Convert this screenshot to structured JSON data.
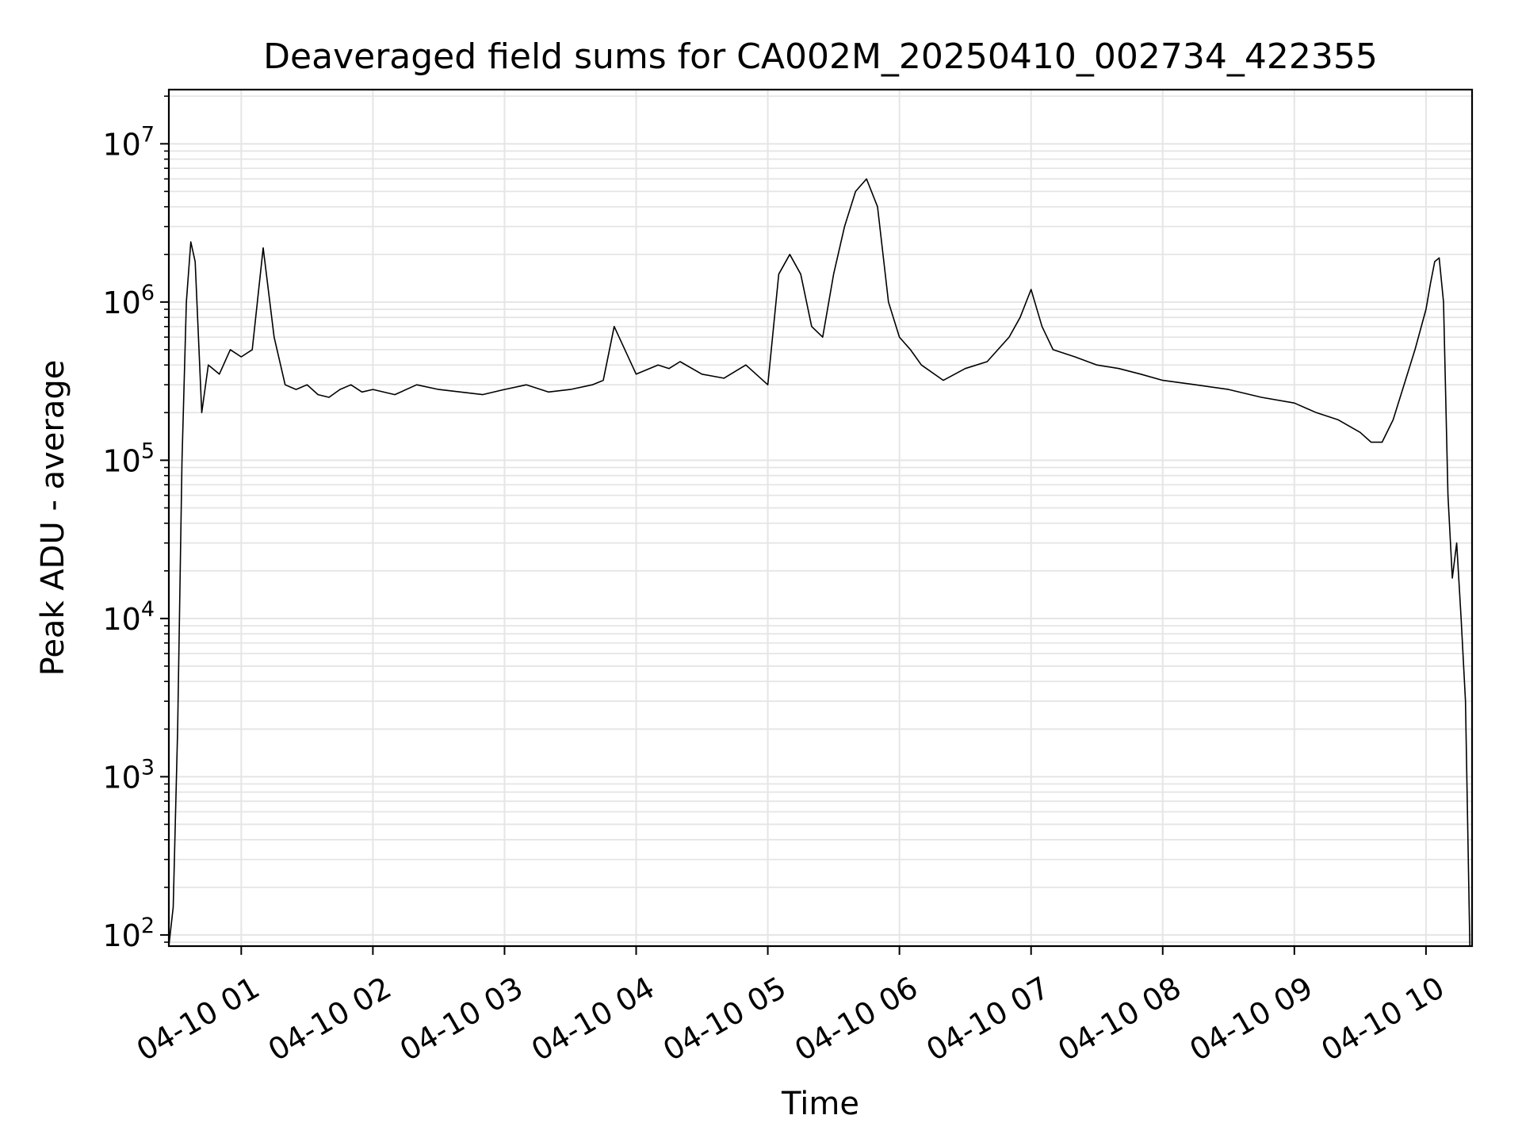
{
  "chart_data": {
    "type": "line",
    "title": "Deaveraged field sums for CA002M_20250410_002734_422355",
    "xlabel": "Time",
    "ylabel": "Peak ADU - average",
    "yscale": "log",
    "ylim": [
      85,
      22000000
    ],
    "xlim": [
      "2025-04-10 00:27",
      "2025-04-10 10:21"
    ],
    "grid": true,
    "line_color": "#000000",
    "grid_color": "#e5e5e5",
    "x_ticks": [
      {
        "value": "2025-04-10 01:00",
        "label": "04-10 01"
      },
      {
        "value": "2025-04-10 02:00",
        "label": "04-10 02"
      },
      {
        "value": "2025-04-10 03:00",
        "label": "04-10 03"
      },
      {
        "value": "2025-04-10 04:00",
        "label": "04-10 04"
      },
      {
        "value": "2025-04-10 05:00",
        "label": "04-10 05"
      },
      {
        "value": "2025-04-10 06:00",
        "label": "04-10 06"
      },
      {
        "value": "2025-04-10 07:00",
        "label": "04-10 07"
      },
      {
        "value": "2025-04-10 08:00",
        "label": "04-10 08"
      },
      {
        "value": "2025-04-10 09:00",
        "label": "04-10 09"
      },
      {
        "value": "2025-04-10 10:00",
        "label": "04-10 10"
      }
    ],
    "y_ticks": [
      {
        "value": 100,
        "base": "10",
        "exp": "2"
      },
      {
        "value": 1000,
        "base": "10",
        "exp": "3"
      },
      {
        "value": 10000,
        "base": "10",
        "exp": "4"
      },
      {
        "value": 100000,
        "base": "10",
        "exp": "5"
      },
      {
        "value": 1000000,
        "base": "10",
        "exp": "6"
      },
      {
        "value": 10000000,
        "base": "10",
        "exp": "7"
      }
    ],
    "series": [
      {
        "x": [
          "2025-04-10 00:27",
          "2025-04-10 00:29",
          "2025-04-10 00:31",
          "2025-04-10 00:33",
          "2025-04-10 00:35",
          "2025-04-10 00:37",
          "2025-04-10 00:39",
          "2025-04-10 00:42",
          "2025-04-10 00:45",
          "2025-04-10 00:50",
          "2025-04-10 00:55",
          "2025-04-10 01:00",
          "2025-04-10 01:05",
          "2025-04-10 01:10",
          "2025-04-10 01:15",
          "2025-04-10 01:20",
          "2025-04-10 01:25",
          "2025-04-10 01:30",
          "2025-04-10 01:35",
          "2025-04-10 01:40",
          "2025-04-10 01:45",
          "2025-04-10 01:50",
          "2025-04-10 01:55",
          "2025-04-10 02:00",
          "2025-04-10 02:10",
          "2025-04-10 02:20",
          "2025-04-10 02:30",
          "2025-04-10 02:40",
          "2025-04-10 02:50",
          "2025-04-10 03:00",
          "2025-04-10 03:10",
          "2025-04-10 03:20",
          "2025-04-10 03:30",
          "2025-04-10 03:40",
          "2025-04-10 03:45",
          "2025-04-10 03:50",
          "2025-04-10 04:00",
          "2025-04-10 04:10",
          "2025-04-10 04:15",
          "2025-04-10 04:20",
          "2025-04-10 04:30",
          "2025-04-10 04:40",
          "2025-04-10 04:50",
          "2025-04-10 05:00",
          "2025-04-10 05:05",
          "2025-04-10 05:10",
          "2025-04-10 05:15",
          "2025-04-10 05:20",
          "2025-04-10 05:25",
          "2025-04-10 05:30",
          "2025-04-10 05:35",
          "2025-04-10 05:40",
          "2025-04-10 05:45",
          "2025-04-10 05:50",
          "2025-04-10 05:55",
          "2025-04-10 06:00",
          "2025-04-10 06:05",
          "2025-04-10 06:10",
          "2025-04-10 06:20",
          "2025-04-10 06:30",
          "2025-04-10 06:40",
          "2025-04-10 06:50",
          "2025-04-10 06:55",
          "2025-04-10 07:00",
          "2025-04-10 07:05",
          "2025-04-10 07:10",
          "2025-04-10 07:20",
          "2025-04-10 07:30",
          "2025-04-10 07:40",
          "2025-04-10 07:50",
          "2025-04-10 08:00",
          "2025-04-10 08:15",
          "2025-04-10 08:30",
          "2025-04-10 08:45",
          "2025-04-10 09:00",
          "2025-04-10 09:10",
          "2025-04-10 09:20",
          "2025-04-10 09:30",
          "2025-04-10 09:35",
          "2025-04-10 09:40",
          "2025-04-10 09:45",
          "2025-04-10 09:50",
          "2025-04-10 09:55",
          "2025-04-10 10:00",
          "2025-04-10 10:02",
          "2025-04-10 10:04",
          "2025-04-10 10:06",
          "2025-04-10 10:08",
          "2025-04-10 10:10",
          "2025-04-10 10:12",
          "2025-04-10 10:14",
          "2025-04-10 10:16",
          "2025-04-10 10:18",
          "2025-04-10 10:20"
        ],
        "values": [
          80,
          150,
          2000,
          100000,
          1000000,
          2400000,
          1800000,
          200000,
          400000,
          350000,
          500000,
          450000,
          500000,
          2200000,
          600000,
          300000,
          280000,
          300000,
          260000,
          250000,
          280000,
          300000,
          270000,
          280000,
          260000,
          300000,
          280000,
          270000,
          260000,
          280000,
          300000,
          270000,
          280000,
          300000,
          320000,
          700000,
          350000,
          400000,
          380000,
          420000,
          350000,
          330000,
          400000,
          300000,
          1500000,
          2000000,
          1500000,
          700000,
          600000,
          1500000,
          3000000,
          5000000,
          6000000,
          4000000,
          1000000,
          600000,
          500000,
          400000,
          320000,
          380000,
          420000,
          600000,
          800000,
          1200000,
          700000,
          500000,
          450000,
          400000,
          380000,
          350000,
          320000,
          300000,
          280000,
          250000,
          230000,
          200000,
          180000,
          150000,
          130000,
          130000,
          180000,
          300000,
          500000,
          900000,
          1300000,
          1800000,
          1900000,
          1000000,
          60000,
          18000,
          30000,
          10000,
          3000,
          80
        ]
      }
    ]
  }
}
